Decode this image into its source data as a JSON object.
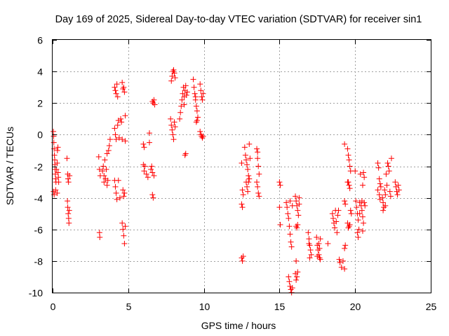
{
  "chart_data": {
    "type": "scatter",
    "title": "Day 169 of 2025, Sidereal Day-to-day VTEC variation (SDTVAR) for receiver sin1",
    "xlabel": "GPS time / hours",
    "ylabel": "SDTVAR / TECUs",
    "xlim": [
      0,
      25
    ],
    "ylim": [
      -10,
      6
    ],
    "xticks": [
      "0",
      "5",
      "10",
      "15",
      "20",
      "25"
    ],
    "yticks": [
      "-10",
      "-8",
      "-6",
      "-4",
      "-2",
      "0",
      "2",
      "4",
      "6"
    ],
    "grid": true,
    "legend": "none",
    "marker": "+",
    "color": "#ff0000",
    "series": [
      {
        "name": "SDTVAR",
        "points": [
          [
            0.05,
            0.2
          ],
          [
            0.07,
            -0.1
          ],
          [
            0.08,
            -0.5
          ],
          [
            0.1,
            -0.9
          ],
          [
            0.12,
            -1.3
          ],
          [
            0.14,
            -1.6
          ],
          [
            0.15,
            -1.9
          ],
          [
            0.16,
            -2.2
          ],
          [
            0.18,
            -2.5
          ],
          [
            0.2,
            -2.8
          ],
          [
            0.22,
            -3.0
          ],
          [
            0.06,
            -3.6
          ],
          [
            0.1,
            -3.8
          ],
          [
            0.2,
            -3.5
          ],
          [
            0.25,
            -2.2
          ],
          [
            0.3,
            -1.8
          ],
          [
            0.32,
            -1.0
          ],
          [
            0.35,
            -0.8
          ],
          [
            0.36,
            -2.4
          ],
          [
            0.38,
            -2.7
          ],
          [
            0.4,
            -3.0
          ],
          [
            0.3,
            -3.7
          ],
          [
            0.95,
            -1.5
          ],
          [
            1.0,
            -2.5
          ],
          [
            1.02,
            -2.8
          ],
          [
            1.05,
            -3.0
          ],
          [
            0.98,
            -4.2
          ],
          [
            1.0,
            -4.6
          ],
          [
            1.03,
            -5.0
          ],
          [
            1.06,
            -5.3
          ],
          [
            1.08,
            -5.6
          ],
          [
            1.1,
            -4.8
          ],
          [
            1.12,
            -2.6
          ],
          [
            3.05,
            -1.4
          ],
          [
            3.1,
            -2.2
          ],
          [
            3.15,
            -2.6
          ],
          [
            3.1,
            -6.2
          ],
          [
            3.12,
            -6.5
          ],
          [
            3.3,
            -2.3
          ],
          [
            3.35,
            -2.0
          ],
          [
            3.4,
            -2.6
          ],
          [
            3.45,
            -1.6
          ],
          [
            3.5,
            -2.8
          ],
          [
            3.55,
            -2.2
          ],
          [
            3.6,
            -1.2
          ],
          [
            3.65,
            -2.9
          ],
          [
            3.7,
            -1.0
          ],
          [
            3.75,
            -0.7
          ],
          [
            3.8,
            -0.3
          ],
          [
            3.4,
            -3.0
          ],
          [
            3.6,
            -3.2
          ],
          [
            4.1,
            3.0
          ],
          [
            4.15,
            2.8
          ],
          [
            4.2,
            2.6
          ],
          [
            4.25,
            3.2
          ],
          [
            4.3,
            2.4
          ],
          [
            4.1,
            0.4
          ],
          [
            4.15,
            0.0
          ],
          [
            4.2,
            -0.3
          ],
          [
            4.1,
            -2.9
          ],
          [
            4.15,
            -3.3
          ],
          [
            4.2,
            -3.7
          ],
          [
            4.25,
            -4.1
          ],
          [
            4.3,
            0.6
          ],
          [
            4.35,
            0.9
          ],
          [
            4.4,
            -0.2
          ],
          [
            4.5,
            1.0
          ],
          [
            4.55,
            0.8
          ],
          [
            4.6,
            3.3
          ],
          [
            4.65,
            2.9
          ],
          [
            4.7,
            3.0
          ],
          [
            4.75,
            2.7
          ],
          [
            4.6,
            -0.3
          ],
          [
            4.65,
            -3.5
          ],
          [
            4.7,
            -3.9
          ],
          [
            4.75,
            -3.7
          ],
          [
            4.6,
            -5.6
          ],
          [
            4.65,
            -6.0
          ],
          [
            4.7,
            -6.4
          ],
          [
            4.75,
            -6.9
          ],
          [
            4.8,
            -5.8
          ],
          [
            4.45,
            -4.0
          ],
          [
            4.35,
            -2.9
          ],
          [
            4.8,
            -0.4
          ],
          [
            4.8,
            1.2
          ],
          [
            6.0,
            -0.6
          ],
          [
            6.05,
            -0.8
          ],
          [
            6.0,
            -1.9
          ],
          [
            6.05,
            -2.3
          ],
          [
            6.1,
            -2.0
          ],
          [
            6.2,
            -2.5
          ],
          [
            6.3,
            -2.7
          ],
          [
            6.4,
            0.1
          ],
          [
            6.4,
            -0.5
          ],
          [
            6.5,
            -2.2
          ],
          [
            6.6,
            -2.4
          ],
          [
            6.7,
            -2.6
          ],
          [
            6.6,
            -3.8
          ],
          [
            6.65,
            -4.0
          ],
          [
            6.6,
            2.1
          ],
          [
            6.65,
            2.0
          ],
          [
            6.7,
            2.2
          ],
          [
            6.75,
            1.9
          ],
          [
            6.55,
            -2.0
          ],
          [
            7.8,
            1.0
          ],
          [
            7.85,
            0.6
          ],
          [
            7.9,
            0.3
          ],
          [
            7.95,
            0.0
          ],
          [
            8.0,
            -0.3
          ],
          [
            8.05,
            0.8
          ],
          [
            7.85,
            3.4
          ],
          [
            7.9,
            3.7
          ],
          [
            7.95,
            4.0
          ],
          [
            8.0,
            4.1
          ],
          [
            8.05,
            3.9
          ],
          [
            8.1,
            3.6
          ],
          [
            8.1,
            0.5
          ],
          [
            8.4,
            1.0
          ],
          [
            8.45,
            1.4
          ],
          [
            8.5,
            1.8
          ],
          [
            8.55,
            2.2
          ],
          [
            8.6,
            2.6
          ],
          [
            8.65,
            3.0
          ],
          [
            8.7,
            2.4
          ],
          [
            8.75,
            2.8
          ],
          [
            8.8,
            3.1
          ],
          [
            8.85,
            2.5
          ],
          [
            8.7,
            1.9
          ],
          [
            8.75,
            -1.3
          ],
          [
            8.8,
            -1.2
          ],
          [
            8.9,
            2.7
          ],
          [
            9.3,
            3.5
          ],
          [
            9.35,
            3.0
          ],
          [
            9.4,
            2.6
          ],
          [
            9.45,
            2.2
          ],
          [
            9.5,
            1.8
          ],
          [
            9.55,
            1.5
          ],
          [
            9.6,
            1.1
          ],
          [
            9.5,
            0.8
          ],
          [
            9.55,
            0.9
          ],
          [
            9.45,
            2.4
          ],
          [
            9.75,
            3.2
          ],
          [
            9.8,
            2.8
          ],
          [
            9.85,
            2.4
          ],
          [
            9.9,
            2.2
          ],
          [
            9.95,
            2.6
          ],
          [
            9.8,
            0.0
          ],
          [
            9.85,
            -0.1
          ],
          [
            9.9,
            -0.2
          ],
          [
            9.95,
            -0.1
          ],
          [
            9.75,
            0.2
          ],
          [
            12.5,
            -1.8
          ],
          [
            12.55,
            -3.5
          ],
          [
            12.6,
            -3.8
          ],
          [
            12.5,
            -4.4
          ],
          [
            12.55,
            -4.6
          ],
          [
            12.5,
            -7.8
          ],
          [
            12.55,
            -8.0
          ],
          [
            12.6,
            -7.7
          ],
          [
            12.7,
            -0.8
          ],
          [
            12.75,
            -1.3
          ],
          [
            12.8,
            -1.6
          ],
          [
            12.85,
            -1.9
          ],
          [
            12.9,
            -2.2
          ],
          [
            12.95,
            -2.6
          ],
          [
            12.8,
            -3.0
          ],
          [
            12.85,
            -3.3
          ],
          [
            12.9,
            -3.6
          ],
          [
            12.95,
            -3.0
          ],
          [
            13.0,
            -0.6
          ],
          [
            13.0,
            -2.8
          ],
          [
            13.05,
            -1.5
          ],
          [
            13.5,
            -0.9
          ],
          [
            13.55,
            -1.5
          ],
          [
            13.6,
            -2.0
          ],
          [
            13.65,
            -2.5
          ],
          [
            13.5,
            -3.0
          ],
          [
            13.55,
            -3.3
          ],
          [
            13.6,
            -3.7
          ],
          [
            13.65,
            -3.9
          ],
          [
            13.55,
            -1.1
          ],
          [
            15.0,
            -3.0
          ],
          [
            15.05,
            -3.2
          ],
          [
            15.0,
            -4.6
          ],
          [
            15.05,
            -5.7
          ],
          [
            15.45,
            -4.3
          ],
          [
            15.5,
            -4.6
          ],
          [
            15.55,
            -5.0
          ],
          [
            15.6,
            -5.3
          ],
          [
            15.65,
            -5.8
          ],
          [
            15.7,
            -6.3
          ],
          [
            15.75,
            -6.8
          ],
          [
            15.8,
            -7.1
          ],
          [
            15.6,
            -9.0
          ],
          [
            15.65,
            -9.3
          ],
          [
            15.7,
            -9.6
          ],
          [
            15.75,
            -9.8
          ],
          [
            15.8,
            -10.0
          ],
          [
            15.85,
            -9.7
          ],
          [
            15.7,
            -4.2
          ],
          [
            15.85,
            -4.5
          ],
          [
            16.05,
            -3.9
          ],
          [
            16.1,
            -4.2
          ],
          [
            16.15,
            -4.5
          ],
          [
            16.2,
            -4.8
          ],
          [
            16.25,
            -5.1
          ],
          [
            16.3,
            -4.4
          ],
          [
            16.1,
            -5.8
          ],
          [
            16.15,
            -5.9
          ],
          [
            16.2,
            -5.7
          ],
          [
            16.05,
            -8.8
          ],
          [
            16.1,
            -9.2
          ],
          [
            16.15,
            -9.0
          ],
          [
            16.2,
            -8.7
          ],
          [
            16.1,
            -8.0
          ],
          [
            16.3,
            -4.0
          ],
          [
            16.9,
            -6.2
          ],
          [
            16.95,
            -6.6
          ],
          [
            17.0,
            -7.0
          ],
          [
            17.05,
            -7.3
          ],
          [
            17.1,
            -7.6
          ],
          [
            17.0,
            -7.8
          ],
          [
            16.95,
            -6.9
          ],
          [
            17.45,
            -6.5
          ],
          [
            17.5,
            -7.0
          ],
          [
            17.55,
            -7.3
          ],
          [
            17.6,
            -7.6
          ],
          [
            17.65,
            -7.8
          ],
          [
            17.7,
            -7.9
          ],
          [
            17.5,
            -7.7
          ],
          [
            17.6,
            -6.9
          ],
          [
            17.65,
            -7.2
          ],
          [
            17.7,
            -6.6
          ],
          [
            18.2,
            -6.9
          ],
          [
            18.5,
            -5.0
          ],
          [
            18.55,
            -5.3
          ],
          [
            18.6,
            -5.6
          ],
          [
            18.65,
            -5.9
          ],
          [
            18.7,
            -4.8
          ],
          [
            18.75,
            -5.5
          ],
          [
            18.8,
            -6.2
          ],
          [
            18.85,
            -5.1
          ],
          [
            18.9,
            -4.8
          ],
          [
            18.95,
            -7.9
          ],
          [
            19.0,
            -8.1
          ],
          [
            19.1,
            -8.4
          ],
          [
            19.2,
            -8.0
          ],
          [
            19.3,
            -8.5
          ],
          [
            19.3,
            -7.2
          ],
          [
            19.35,
            -7.0
          ],
          [
            19.3,
            -4.2
          ],
          [
            19.35,
            -4.4
          ],
          [
            19.3,
            -0.6
          ],
          [
            19.5,
            -0.9
          ],
          [
            19.55,
            -1.3
          ],
          [
            19.6,
            -1.6
          ],
          [
            19.65,
            -2.0
          ],
          [
            19.7,
            -2.3
          ],
          [
            19.55,
            -3.0
          ],
          [
            19.6,
            -3.2
          ],
          [
            19.65,
            -3.4
          ],
          [
            19.5,
            -3.0
          ],
          [
            19.5,
            -5.6
          ],
          [
            19.55,
            -5.9
          ],
          [
            19.6,
            -5.8
          ],
          [
            19.65,
            -5.7
          ],
          [
            19.7,
            -4.8
          ],
          [
            19.75,
            -5.0
          ],
          [
            20.0,
            -2.3
          ],
          [
            20.05,
            -4.2
          ],
          [
            20.1,
            -4.6
          ],
          [
            20.15,
            -5.0
          ],
          [
            20.2,
            -5.4
          ],
          [
            20.15,
            -6.2
          ],
          [
            20.2,
            -6.5
          ],
          [
            20.25,
            -6.0
          ],
          [
            20.3,
            -4.3
          ],
          [
            20.35,
            -2.5
          ],
          [
            20.4,
            -4.5
          ],
          [
            20.45,
            -4.8
          ],
          [
            20.5,
            -5.2
          ],
          [
            20.55,
            -5.6
          ],
          [
            20.5,
            -6.1
          ],
          [
            20.45,
            -4.2
          ],
          [
            20.6,
            -4.3
          ],
          [
            20.65,
            -4.5
          ],
          [
            20.55,
            -2.4
          ],
          [
            20.6,
            -2.7
          ],
          [
            20.5,
            -3.2
          ],
          [
            20.3,
            -5.0
          ],
          [
            21.5,
            -1.8
          ],
          [
            21.55,
            -2.1
          ],
          [
            21.6,
            -2.8
          ],
          [
            21.65,
            -3.1
          ],
          [
            21.5,
            -3.5
          ],
          [
            21.6,
            -3.8
          ],
          [
            21.65,
            -4.1
          ],
          [
            21.7,
            -3.3
          ],
          [
            21.8,
            -4.0
          ],
          [
            21.85,
            -4.3
          ],
          [
            21.9,
            -4.6
          ],
          [
            21.95,
            -3.5
          ],
          [
            22.0,
            -3.8
          ],
          [
            22.05,
            -2.5
          ],
          [
            22.1,
            -3.2
          ],
          [
            22.15,
            -1.8
          ],
          [
            22.2,
            -2.0
          ],
          [
            22.25,
            -2.3
          ],
          [
            22.3,
            -3.6
          ],
          [
            22.35,
            -3.9
          ],
          [
            22.4,
            -1.5
          ],
          [
            21.85,
            -4.8
          ],
          [
            22.0,
            -4.5
          ],
          [
            22.65,
            -3.0
          ],
          [
            22.7,
            -3.3
          ],
          [
            22.75,
            -3.6
          ],
          [
            22.8,
            -3.8
          ],
          [
            22.85,
            -3.2
          ],
          [
            22.9,
            -3.5
          ]
        ]
      }
    ]
  }
}
